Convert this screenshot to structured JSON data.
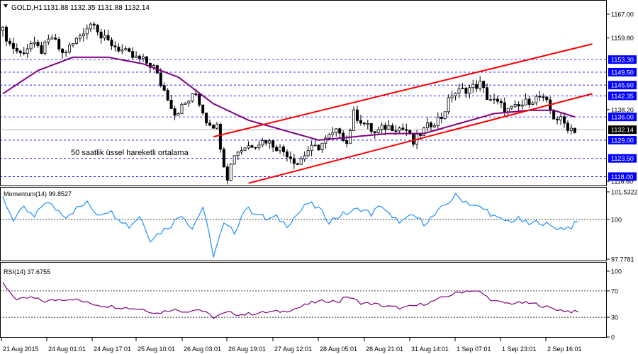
{
  "header": {
    "symbol": "GOLD,H1",
    "ohlc": "1131.88 1132.35 1131.88 1132.14",
    "dropdown_icon": "triangle-down-icon"
  },
  "annotation": "50 saatlik üssel hareketli ortalama",
  "colors": {
    "candle": "#000000",
    "ema": "#800080",
    "channel": "#ff0000",
    "level": "#0000ff",
    "momentum": "#1e90ff",
    "rsi": "#800080",
    "label_bg": "#0000ff",
    "current_bg": "#000000"
  },
  "chart_data": [
    {
      "type": "candlestick",
      "title": "GOLD,H1 1131.88 1132.35 1131.88 1132.14",
      "y_ticks": [
        "1167.00",
        "1159.80",
        "1138.20",
        "1116.60"
      ],
      "ylim": [
        1116.6,
        1167.0
      ],
      "levels": [
        {
          "label": "1153.30",
          "value": 1153.3
        },
        {
          "label": "1149.50",
          "value": 1149.5
        },
        {
          "label": "1145.60",
          "value": 1145.6
        },
        {
          "label": "1142.35",
          "value": 1142.35
        },
        {
          "label": "1136.00",
          "value": 1136.0
        },
        {
          "label": "1129.00",
          "value": 1129.0
        },
        {
          "label": "1123.50",
          "value": 1123.5
        },
        {
          "label": "1118.00",
          "value": 1118.0
        }
      ],
      "current_price": {
        "label": "1132.14",
        "value": 1132.14
      },
      "close_anchors": [
        [
          0,
          1162
        ],
        [
          2,
          1158
        ],
        [
          5,
          1155
        ],
        [
          8,
          1158
        ],
        [
          11,
          1156
        ],
        [
          14,
          1160
        ],
        [
          17,
          1155
        ],
        [
          20,
          1158
        ],
        [
          23,
          1162
        ],
        [
          26,
          1165
        ],
        [
          28,
          1160
        ],
        [
          31,
          1158
        ],
        [
          34,
          1156
        ],
        [
          37,
          1154
        ],
        [
          40,
          1153
        ],
        [
          43,
          1151
        ],
        [
          45,
          1146
        ],
        [
          47,
          1142
        ],
        [
          49,
          1137
        ],
        [
          52,
          1140
        ],
        [
          55,
          1143
        ],
        [
          58,
          1135
        ],
        [
          61,
          1133
        ],
        [
          63,
          1122
        ],
        [
          64,
          1118
        ],
        [
          66,
          1125
        ],
        [
          69,
          1127
        ],
        [
          72,
          1128
        ],
        [
          75,
          1129
        ],
        [
          78,
          1127
        ],
        [
          81,
          1125
        ],
        [
          84,
          1122
        ],
        [
          87,
          1126
        ],
        [
          90,
          1127
        ],
        [
          93,
          1130
        ],
        [
          96,
          1132
        ],
        [
          98,
          1128
        ],
        [
          100,
          1137
        ],
        [
          103,
          1134
        ],
        [
          106,
          1131
        ],
        [
          109,
          1133
        ],
        [
          112,
          1133
        ],
        [
          115,
          1132
        ],
        [
          117,
          1128
        ],
        [
          119,
          1131
        ],
        [
          122,
          1134
        ],
        [
          125,
          1136
        ],
        [
          128,
          1143
        ],
        [
          131,
          1144
        ],
        [
          134,
          1145
        ],
        [
          136,
          1146
        ],
        [
          138,
          1142
        ],
        [
          141,
          1140
        ],
        [
          144,
          1138
        ],
        [
          147,
          1139
        ],
        [
          150,
          1141
        ],
        [
          153,
          1142
        ],
        [
          155,
          1140
        ],
        [
          157,
          1136
        ],
        [
          159,
          1135
        ],
        [
          161,
          1133
        ],
        [
          163,
          1132.14
        ]
      ],
      "ema50_anchors": [
        [
          0,
          1143
        ],
        [
          10,
          1150
        ],
        [
          20,
          1154
        ],
        [
          30,
          1154
        ],
        [
          40,
          1152
        ],
        [
          50,
          1148
        ],
        [
          60,
          1140
        ],
        [
          70,
          1135
        ],
        [
          80,
          1132
        ],
        [
          90,
          1129
        ],
        [
          100,
          1130
        ],
        [
          110,
          1131
        ],
        [
          120,
          1131
        ],
        [
          130,
          1134
        ],
        [
          140,
          1137
        ],
        [
          150,
          1138
        ],
        [
          157,
          1138
        ],
        [
          163,
          1136
        ]
      ],
      "channel_upper": [
        [
          60,
          1130
        ],
        [
          168,
          1158
        ]
      ],
      "channel_lower": [
        [
          70,
          1116
        ],
        [
          168,
          1143
        ]
      ],
      "annotation": "50 saatlik üssel hareketli ortalama"
    },
    {
      "type": "line",
      "name": "Momentum(14) 99.8527",
      "y_ticks": [
        "101.5322",
        "100",
        "97.7781"
      ],
      "ylim": [
        97.7781,
        101.5322
      ],
      "reference_line": 100,
      "value_anchors": [
        [
          0,
          101.2
        ],
        [
          3,
          100.0
        ],
        [
          6,
          100.6
        ],
        [
          9,
          100.1
        ],
        [
          12,
          101.0
        ],
        [
          15,
          100.6
        ],
        [
          18,
          100.2
        ],
        [
          21,
          100.6
        ],
        [
          24,
          100.9
        ],
        [
          27,
          100.3
        ],
        [
          30,
          100.5
        ],
        [
          33,
          100.1
        ],
        [
          36,
          99.6
        ],
        [
          39,
          100.2
        ],
        [
          42,
          98.9
        ],
        [
          45,
          99.3
        ],
        [
          48,
          99.7
        ],
        [
          51,
          100.3
        ],
        [
          54,
          99.5
        ],
        [
          57,
          100.7
        ],
        [
          60,
          98.0
        ],
        [
          63,
          99.7
        ],
        [
          66,
          99.3
        ],
        [
          69,
          100.6
        ],
        [
          72,
          100.4
        ],
        [
          75,
          100.0
        ],
        [
          78,
          100.1
        ],
        [
          81,
          99.7
        ],
        [
          84,
          100.3
        ],
        [
          87,
          100.9
        ],
        [
          90,
          100.6
        ],
        [
          93,
          99.9
        ],
        [
          96,
          100.2
        ],
        [
          99,
          100.4
        ],
        [
          102,
          100.6
        ],
        [
          105,
          100.3
        ],
        [
          108,
          100.8
        ],
        [
          111,
          100.0
        ],
        [
          114,
          99.9
        ],
        [
          117,
          100.2
        ],
        [
          120,
          99.8
        ],
        [
          123,
          100.2
        ],
        [
          126,
          100.8
        ],
        [
          129,
          101.3
        ],
        [
          132,
          101.0
        ],
        [
          135,
          100.7
        ],
        [
          138,
          100.5
        ],
        [
          141,
          100.0
        ],
        [
          144,
          99.9
        ],
        [
          147,
          100.0
        ],
        [
          150,
          99.7
        ],
        [
          153,
          99.9
        ],
        [
          156,
          99.6
        ],
        [
          159,
          99.5
        ],
        [
          162,
          99.6
        ],
        [
          164,
          99.8527
        ]
      ]
    },
    {
      "type": "line",
      "name": "RSI(14) 37.6755",
      "y_ticks": [
        "100",
        "70",
        "30",
        "0"
      ],
      "ylim": [
        0,
        100
      ],
      "reference_lines": [
        70,
        30
      ],
      "value_anchors": [
        [
          0,
          82
        ],
        [
          4,
          56
        ],
        [
          8,
          60
        ],
        [
          12,
          54
        ],
        [
          16,
          57
        ],
        [
          20,
          58
        ],
        [
          24,
          52
        ],
        [
          28,
          48
        ],
        [
          32,
          46
        ],
        [
          36,
          44
        ],
        [
          40,
          42
        ],
        [
          44,
          36
        ],
        [
          48,
          42
        ],
        [
          52,
          39
        ],
        [
          56,
          42
        ],
        [
          60,
          30
        ],
        [
          64,
          37
        ],
        [
          68,
          34
        ],
        [
          72,
          36
        ],
        [
          76,
          38
        ],
        [
          80,
          39
        ],
        [
          84,
          44
        ],
        [
          88,
          52
        ],
        [
          92,
          55
        ],
        [
          96,
          54
        ],
        [
          98,
          62
        ],
        [
          102,
          52
        ],
        [
          106,
          50
        ],
        [
          110,
          46
        ],
        [
          114,
          44
        ],
        [
          118,
          48
        ],
        [
          122,
          53
        ],
        [
          126,
          61
        ],
        [
          130,
          68
        ],
        [
          133,
          71
        ],
        [
          136,
          68
        ],
        [
          140,
          54
        ],
        [
          144,
          51
        ],
        [
          148,
          52
        ],
        [
          152,
          50
        ],
        [
          156,
          44
        ],
        [
          160,
          40
        ],
        [
          164,
          37.6755
        ]
      ]
    }
  ],
  "x_axis": {
    "labels": [
      "21 Aug 2015",
      "24 Aug 01:01",
      "24 Aug 17:01",
      "25 Aug 10:01",
      "26 Aug 03:01",
      "26 Aug 19:01",
      "27 Aug 12:01",
      "28 Aug 05:01",
      "28 Aug 21:01",
      "31 Aug 14:01",
      "1 Sep 07:01",
      "1 Sep 23:01",
      "2 Sep 16:01"
    ]
  }
}
